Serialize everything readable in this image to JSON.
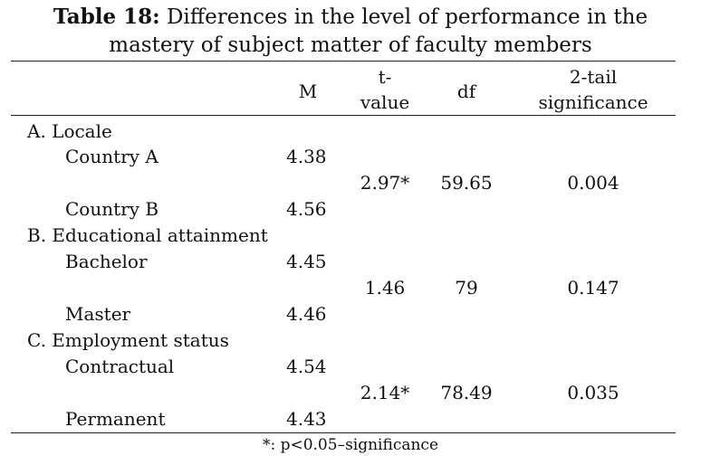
{
  "caption": {
    "label": "Table 18:",
    "text": "Differences in the level of performance in the",
    "line2": "mastery of subject matter of faculty members"
  },
  "headers": {
    "m": "M",
    "t_line1": "t-",
    "t_line2": "value",
    "df": "df",
    "sig_line1": "2-tail",
    "sig_line2": "significance"
  },
  "groups": [
    {
      "title": "A. Locale",
      "rows": [
        {
          "label": "Country A",
          "m": "4.38"
        },
        {
          "label": "Country B",
          "m": "4.56"
        }
      ],
      "t": "2.97*",
      "df": "59.65",
      "sig": "0.004"
    },
    {
      "title": "B. Educational attainment",
      "rows": [
        {
          "label": "Bachelor",
          "m": "4.45"
        },
        {
          "label": "Master",
          "m": "4.46"
        }
      ],
      "t": "1.46",
      "df": "79",
      "sig": "0.147"
    },
    {
      "title": "C. Employment status",
      "rows": [
        {
          "label": "Contractual",
          "m": "4.54"
        },
        {
          "label": "Permanent",
          "m": "4.43"
        }
      ],
      "t": "2.14*",
      "df": "78.49",
      "sig": "0.035"
    }
  ],
  "footnote": "*: p<0.05–significance"
}
